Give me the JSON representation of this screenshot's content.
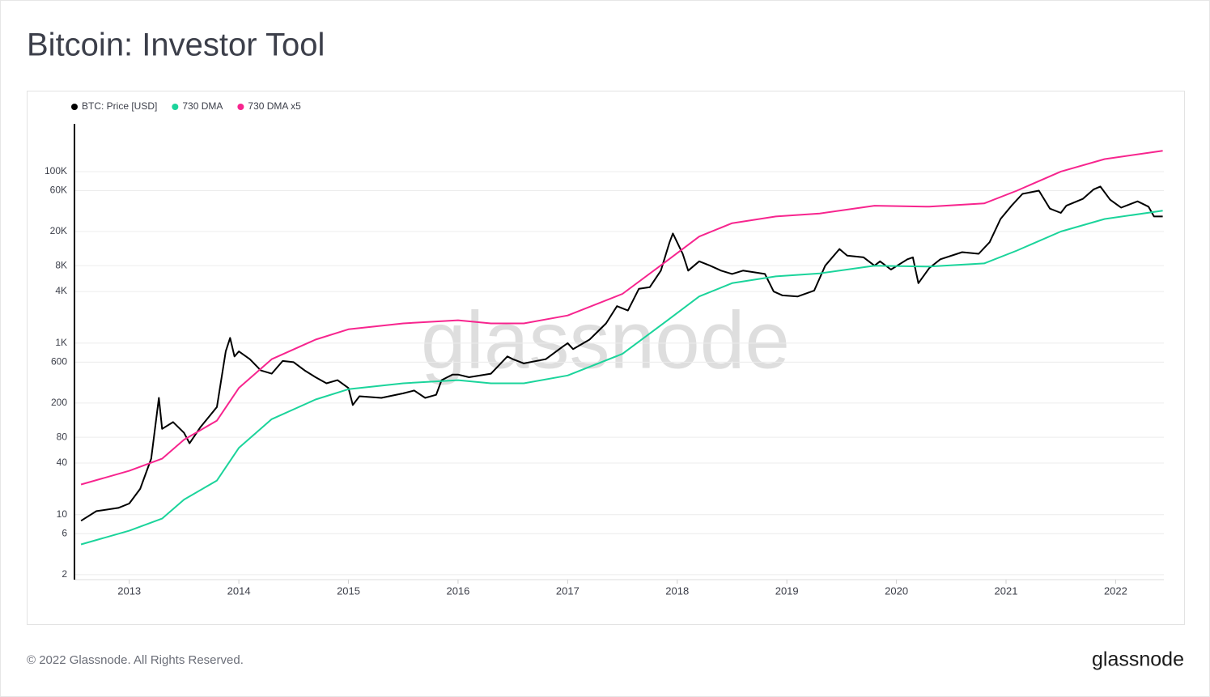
{
  "chart_data": {
    "type": "line",
    "title": "Bitcoin: Investor Tool",
    "watermark": "glassnode",
    "log_scale": true,
    "grid": true,
    "xlim": [
      2012.5,
      2022.44
    ],
    "xticks": [
      2013,
      2014,
      2015,
      2016,
      2017,
      2018,
      2019,
      2020,
      2021,
      2022
    ],
    "ylim": [
      1.75,
      360000
    ],
    "yticks": [
      2,
      6,
      10,
      40,
      80,
      200,
      600,
      {
        "value": 1000,
        "label": "1K"
      },
      {
        "value": 4000,
        "label": "4K"
      },
      {
        "value": 8000,
        "label": "8K"
      },
      {
        "value": 20000,
        "label": "20K"
      },
      {
        "value": 60000,
        "label": "60K"
      },
      {
        "value": 100000,
        "label": "100K"
      }
    ],
    "series": [
      {
        "name": "BTC: Price [USD]",
        "color": "#000000",
        "x": [
          2012.56,
          2012.7,
          2012.9,
          2013.0,
          2013.1,
          2013.2,
          2013.27,
          2013.3,
          2013.4,
          2013.5,
          2013.55,
          2013.65,
          2013.8,
          2013.88,
          2013.92,
          2013.96,
          2014.0,
          2014.1,
          2014.2,
          2014.3,
          2014.4,
          2014.5,
          2014.6,
          2014.7,
          2014.8,
          2014.9,
          2015.0,
          2015.04,
          2015.1,
          2015.3,
          2015.5,
          2015.6,
          2015.7,
          2015.8,
          2015.85,
          2015.95,
          2016.0,
          2016.1,
          2016.3,
          2016.45,
          2016.5,
          2016.6,
          2016.8,
          2016.95,
          2017.0,
          2017.05,
          2017.2,
          2017.35,
          2017.45,
          2017.55,
          2017.65,
          2017.75,
          2017.85,
          2017.93,
          2017.96,
          2018.05,
          2018.1,
          2018.2,
          2018.3,
          2018.4,
          2018.5,
          2018.6,
          2018.8,
          2018.88,
          2018.96,
          2019.1,
          2019.25,
          2019.35,
          2019.48,
          2019.55,
          2019.7,
          2019.8,
          2019.85,
          2019.95,
          2020.1,
          2020.15,
          2020.2,
          2020.3,
          2020.4,
          2020.6,
          2020.75,
          2020.85,
          2020.95,
          2021.05,
          2021.15,
          2021.3,
          2021.4,
          2021.5,
          2021.55,
          2021.7,
          2021.8,
          2021.86,
          2021.95,
          2022.05,
          2022.2,
          2022.3,
          2022.35,
          2022.43
        ],
        "values": [
          8.5,
          11,
          12,
          13.5,
          20,
          45,
          230,
          100,
          120,
          90,
          68,
          105,
          180,
          800,
          1150,
          700,
          800,
          650,
          480,
          440,
          620,
          600,
          480,
          400,
          340,
          370,
          300,
          190,
          240,
          230,
          260,
          280,
          230,
          250,
          370,
          430,
          430,
          400,
          440,
          700,
          650,
          580,
          650,
          900,
          1000,
          850,
          1100,
          1700,
          2700,
          2400,
          4300,
          4500,
          7000,
          15000,
          19000,
          11000,
          7000,
          9000,
          8000,
          7000,
          6400,
          7000,
          6400,
          4000,
          3600,
          3500,
          4100,
          8000,
          12500,
          10500,
          10000,
          8000,
          9000,
          7200,
          9500,
          10000,
          5000,
          7500,
          9500,
          11500,
          11000,
          15000,
          28000,
          40000,
          55000,
          60000,
          37000,
          33000,
          40000,
          48000,
          62000,
          67000,
          47000,
          38000,
          45000,
          39000,
          30000,
          30000
        ]
      },
      {
        "name": "730 DMA",
        "color": "#1bd49b",
        "x": [
          2012.56,
          2013.0,
          2013.3,
          2013.5,
          2013.8,
          2014.0,
          2014.3,
          2014.7,
          2015.0,
          2015.5,
          2016.0,
          2016.3,
          2016.6,
          2017.0,
          2017.5,
          2017.9,
          2018.2,
          2018.5,
          2018.9,
          2019.3,
          2019.8,
          2020.3,
          2020.8,
          2021.1,
          2021.5,
          2021.9,
          2022.43
        ],
        "values": [
          4.5,
          6.5,
          9,
          15,
          25,
          60,
          130,
          220,
          290,
          340,
          370,
          340,
          340,
          420,
          750,
          1800,
          3500,
          5000,
          6000,
          6500,
          8000,
          7800,
          8500,
          12000,
          20000,
          28000,
          35000
        ]
      },
      {
        "name": "730 DMA x5",
        "color": "#f7258e",
        "x": [
          2012.56,
          2013.0,
          2013.3,
          2013.5,
          2013.8,
          2014.0,
          2014.3,
          2014.7,
          2015.0,
          2015.5,
          2016.0,
          2016.3,
          2016.6,
          2017.0,
          2017.5,
          2017.9,
          2018.2,
          2018.5,
          2018.9,
          2019.3,
          2019.8,
          2020.3,
          2020.8,
          2021.1,
          2021.5,
          2021.9,
          2022.43
        ],
        "values": [
          22.5,
          32.5,
          45,
          75,
          125,
          300,
          650,
          1100,
          1450,
          1700,
          1850,
          1700,
          1700,
          2100,
          3750,
          9000,
          17500,
          25000,
          30000,
          32500,
          40000,
          39000,
          42500,
          60000,
          100000,
          140000,
          175000
        ]
      }
    ]
  },
  "footer": "© 2022 Glassnode. All Rights Reserved.",
  "logo": "glassnode"
}
